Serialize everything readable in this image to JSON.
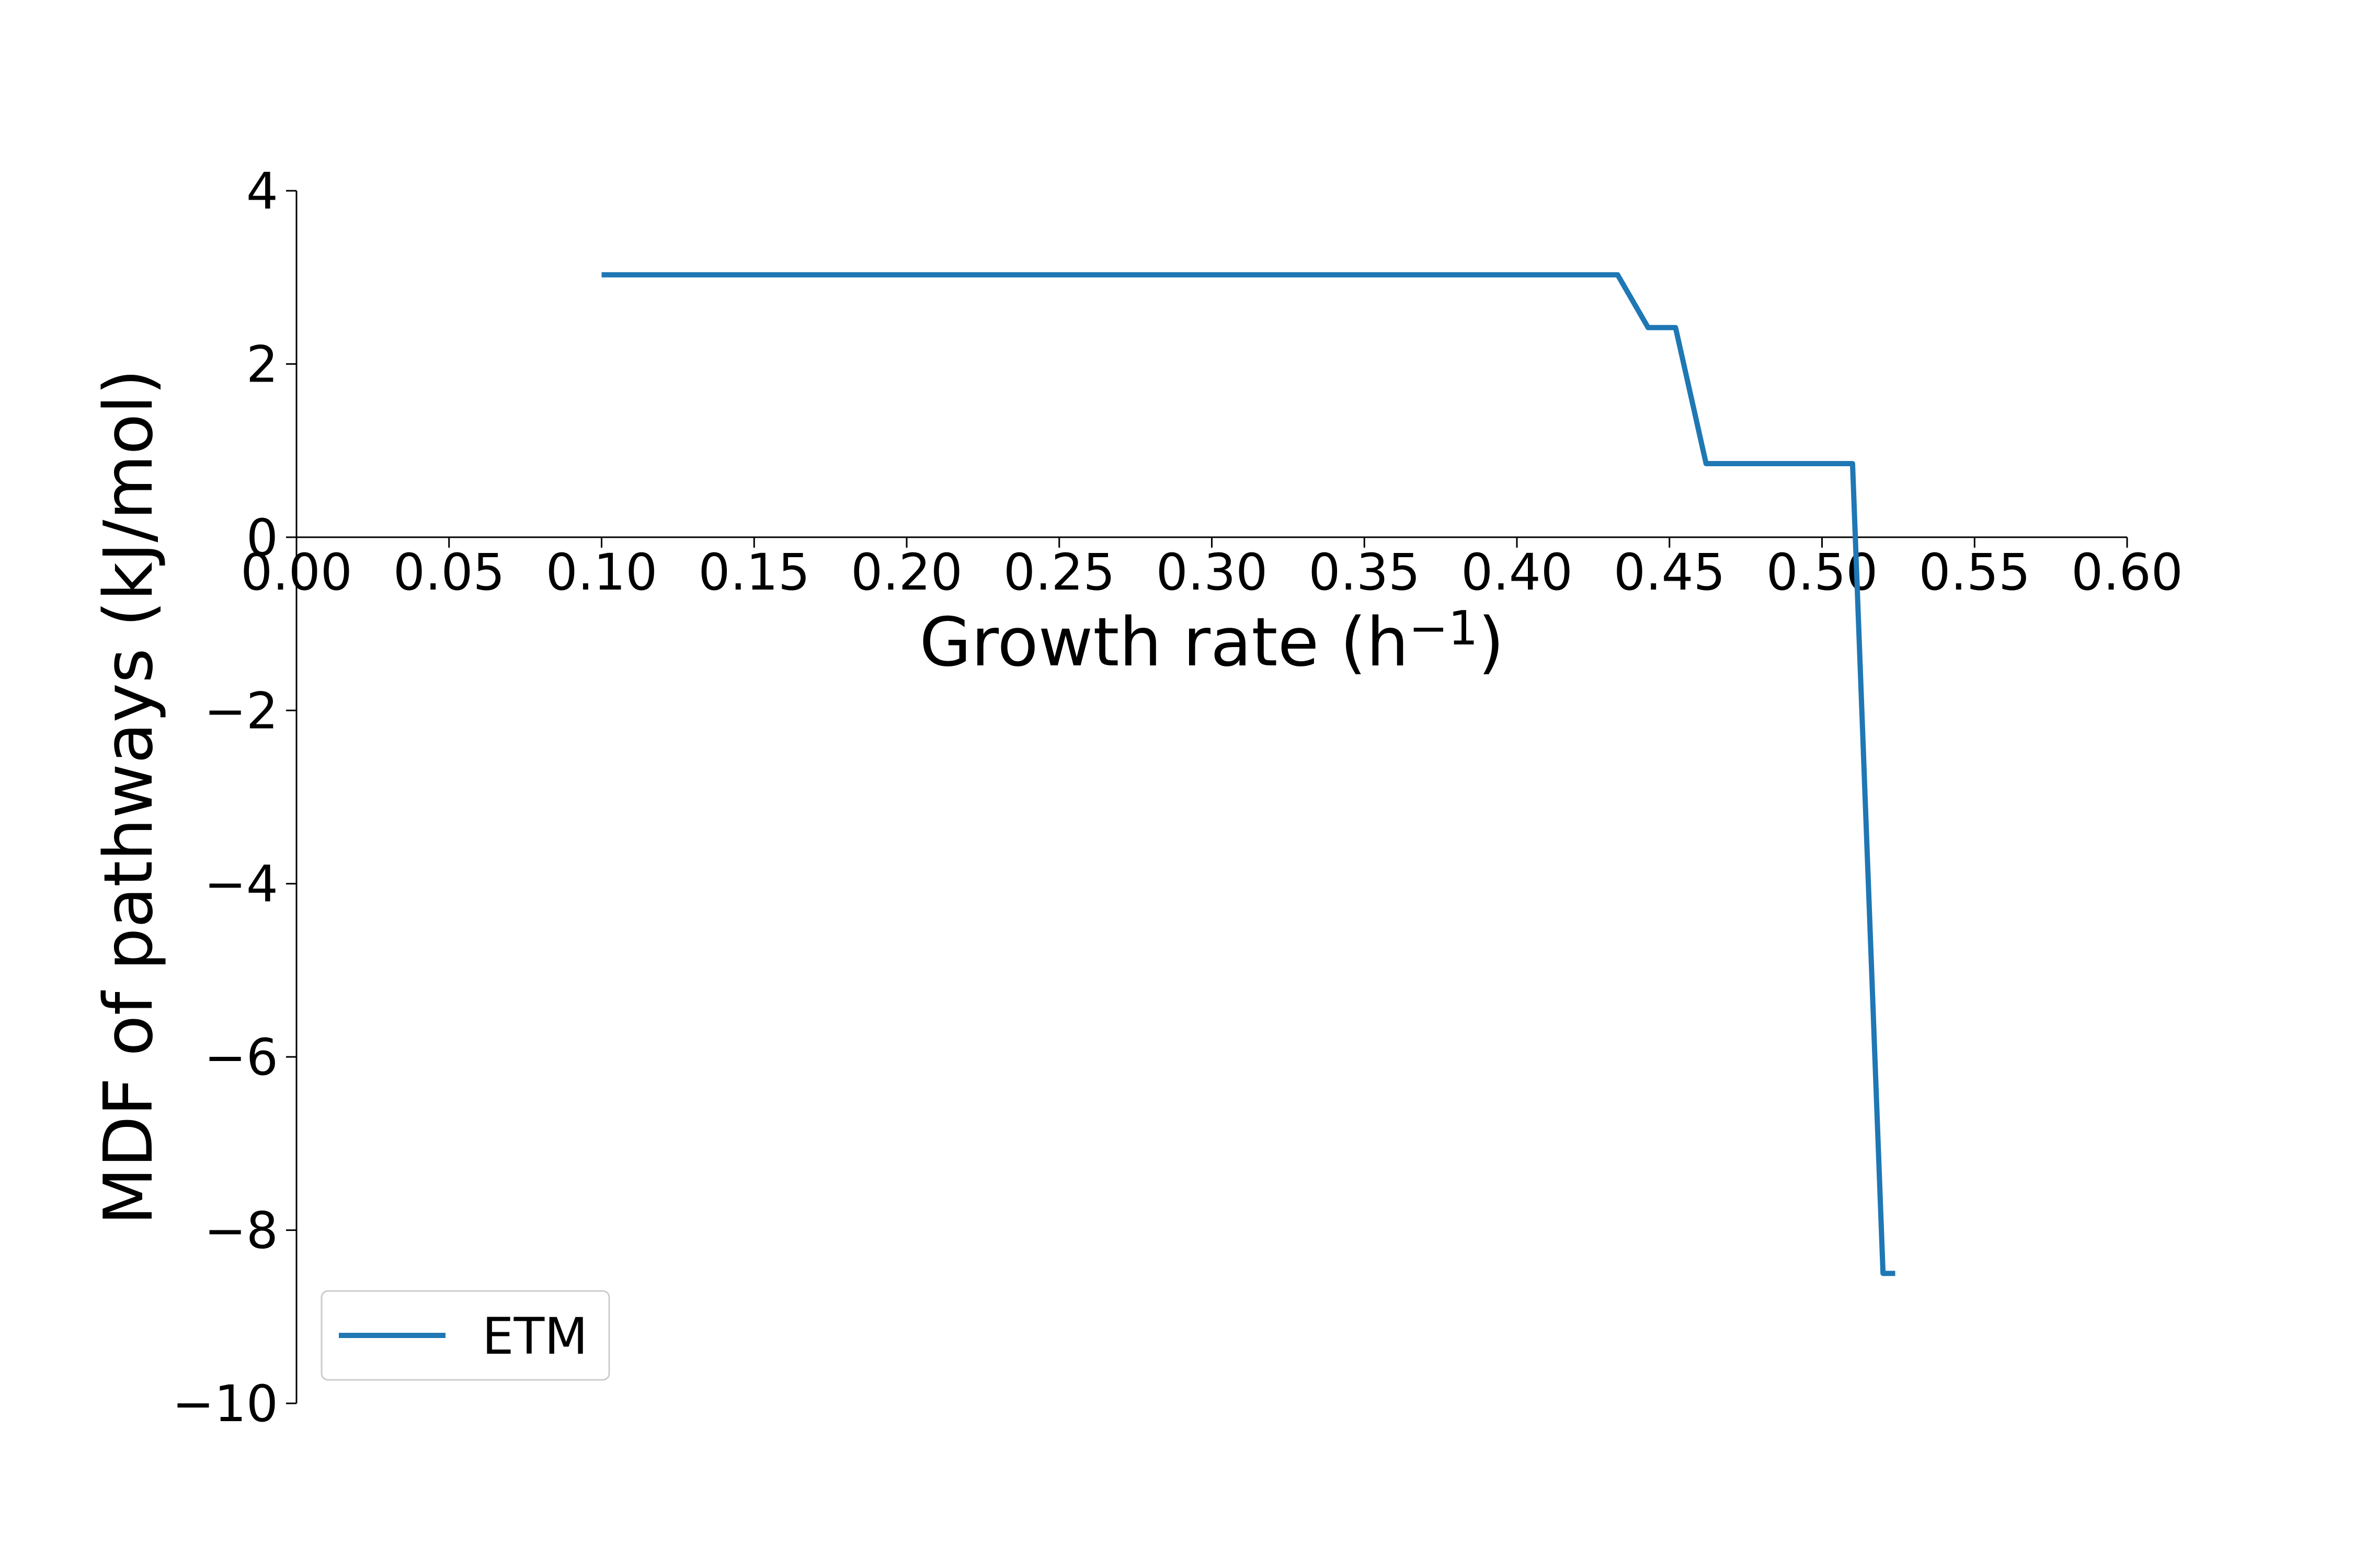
{
  "chart_data": {
    "type": "line",
    "title": "",
    "xlabel": "Growth rate (h$^-1$)",
    "xlabel_main": "Growth rate (h",
    "xlabel_sup": "−1",
    "xlabel_close": ")",
    "ylabel": "MDF of pathways (kJ/mol)",
    "xlim": [
      0.0,
      0.6
    ],
    "ylim": [
      -10,
      4
    ],
    "xticks": [
      0.0,
      0.05,
      0.1,
      0.15,
      0.2,
      0.25,
      0.3,
      0.35,
      0.4,
      0.45,
      0.5,
      0.55,
      0.6
    ],
    "xtick_labels": [
      "0.00",
      "0.05",
      "0.10",
      "0.15",
      "0.20",
      "0.25",
      "0.30",
      "0.35",
      "0.40",
      "0.45",
      "0.50",
      "0.55",
      "0.60"
    ],
    "yticks": [
      -10,
      -8,
      -6,
      -4,
      -2,
      0,
      2,
      4
    ],
    "ytick_labels": [
      "−10",
      "−8",
      "−6",
      "−4",
      "−2",
      "0",
      "2",
      "4"
    ],
    "grid": false,
    "legend_position": "lower-left",
    "series": [
      {
        "name": "ETM",
        "color": "#1f77b4",
        "x": [
          0.1,
          0.12,
          0.14,
          0.16,
          0.18,
          0.2,
          0.22,
          0.24,
          0.26,
          0.28,
          0.3,
          0.32,
          0.34,
          0.36,
          0.38,
          0.4,
          0.42,
          0.433,
          0.443,
          0.452,
          0.462,
          0.472,
          0.482,
          0.492,
          0.502,
          0.51,
          0.52,
          0.524
        ],
        "values": [
          3.03,
          3.03,
          3.03,
          3.03,
          3.03,
          3.03,
          3.03,
          3.03,
          3.03,
          3.03,
          3.03,
          3.03,
          3.03,
          3.03,
          3.03,
          3.03,
          3.03,
          3.03,
          2.42,
          2.42,
          0.85,
          0.85,
          0.85,
          0.85,
          0.85,
          0.85,
          -8.5,
          -8.5
        ]
      }
    ]
  }
}
